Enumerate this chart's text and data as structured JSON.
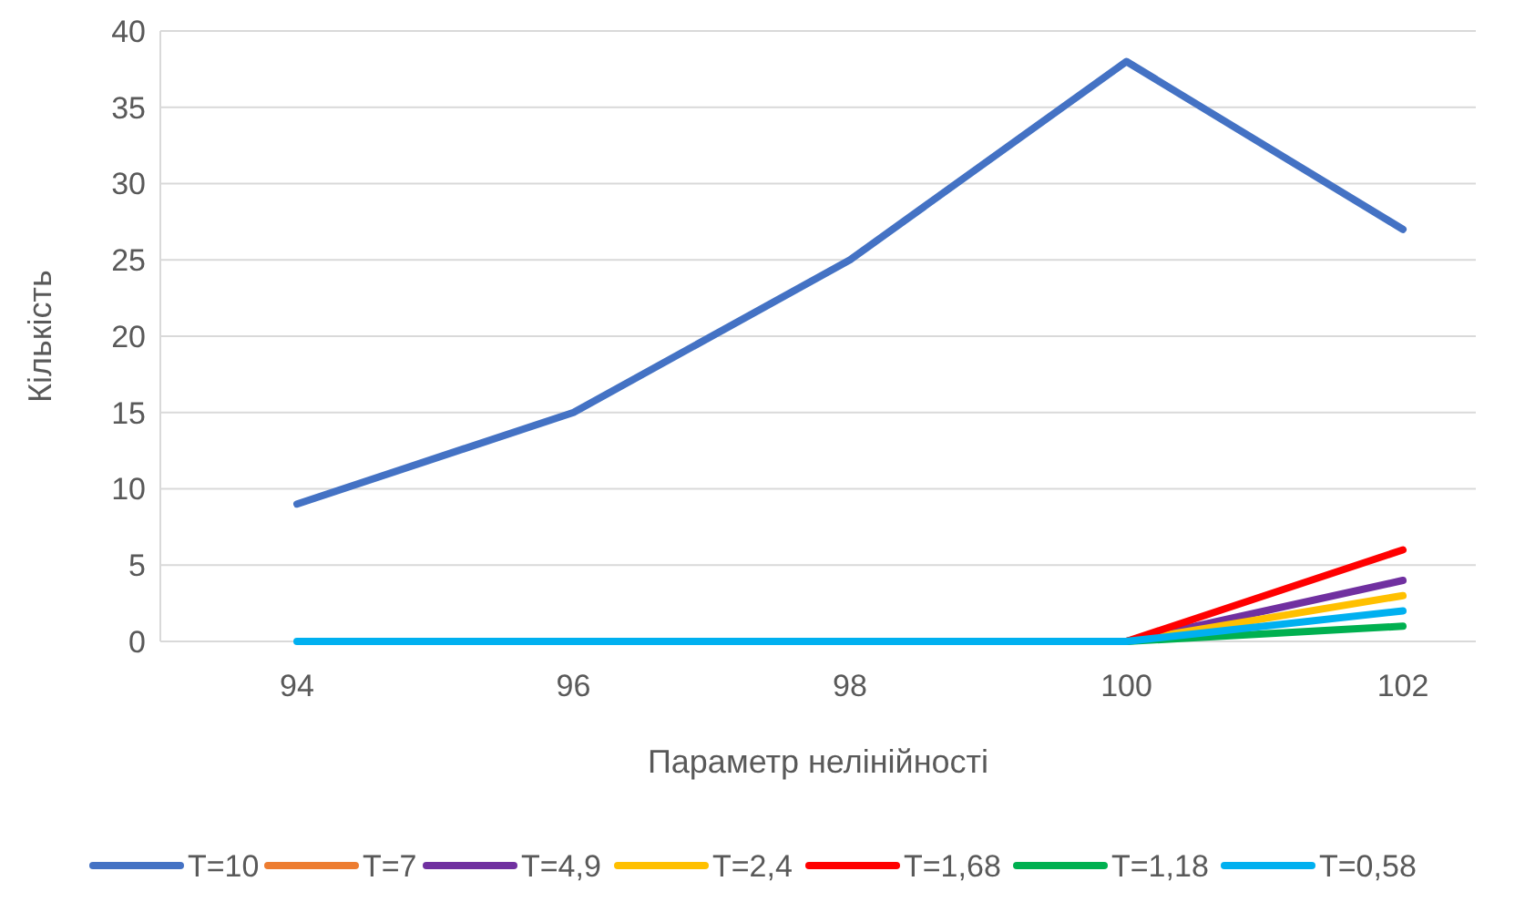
{
  "chart_data": {
    "type": "line",
    "xlabel": "Параметр нелінійності",
    "ylabel": "Кількість",
    "categories": [
      "94",
      "96",
      "98",
      "100",
      "102"
    ],
    "ylim": [
      0,
      40
    ],
    "yticks": [
      0,
      5,
      10,
      15,
      20,
      25,
      30,
      35,
      40
    ],
    "grid": "y",
    "legend": "bottom",
    "marker": "none",
    "line_style": "solid",
    "series": [
      {
        "name": "T=10",
        "color": "#4472c4",
        "values": [
          9,
          15,
          25,
          38,
          27
        ]
      },
      {
        "name": "T=7",
        "color": "#ed7d31",
        "values": [
          null,
          null,
          null,
          null,
          null
        ]
      },
      {
        "name": "T=4,9",
        "color": "#7030a0",
        "values": [
          null,
          null,
          null,
          0,
          4
        ]
      },
      {
        "name": "T=2,4",
        "color": "#ffc000",
        "values": [
          null,
          null,
          null,
          0,
          3
        ]
      },
      {
        "name": "T=1,68",
        "color": "#ff0000",
        "values": [
          null,
          null,
          null,
          0,
          6
        ]
      },
      {
        "name": "T=1,18",
        "color": "#00b050",
        "values": [
          null,
          null,
          null,
          0,
          1
        ]
      },
      {
        "name": "T=0,58",
        "color": "#00b0f0",
        "values": [
          0,
          0,
          0,
          0,
          2
        ]
      }
    ]
  }
}
